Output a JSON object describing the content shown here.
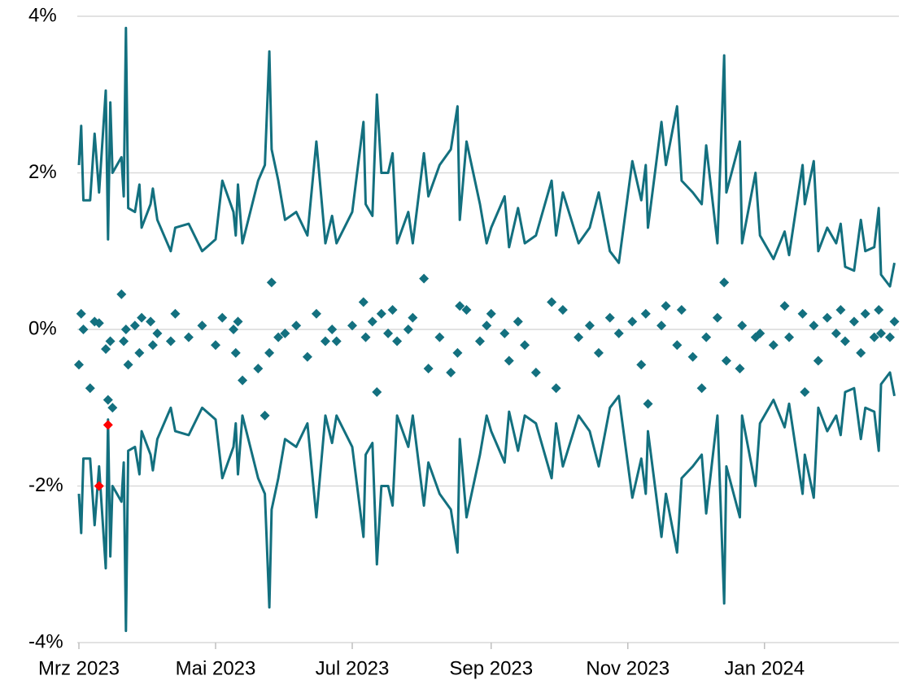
{
  "chart_data": {
    "type": "line",
    "x": [
      "2023-03-01",
      "2023-03-02",
      "2023-03-03",
      "2023-03-06",
      "2023-03-08",
      "2023-03-10",
      "2023-03-13",
      "2023-03-14",
      "2023-03-15",
      "2023-03-16",
      "2023-03-20",
      "2023-03-21",
      "2023-03-22",
      "2023-03-23",
      "2023-03-26",
      "2023-03-28",
      "2023-03-29",
      "2023-04-02",
      "2023-04-03",
      "2023-04-05",
      "2023-04-11",
      "2023-04-13",
      "2023-04-19",
      "2023-04-25",
      "2023-05-01",
      "2023-05-04",
      "2023-05-09",
      "2023-05-10",
      "2023-05-11",
      "2023-05-13",
      "2023-05-20",
      "2023-05-23",
      "2023-05-25",
      "2023-05-26",
      "2023-05-29",
      "2023-06-01",
      "2023-06-06",
      "2023-06-11",
      "2023-06-15",
      "2023-06-19",
      "2023-06-22",
      "2023-06-24",
      "2023-07-01",
      "2023-07-06",
      "2023-07-07",
      "2023-07-10",
      "2023-07-12",
      "2023-07-14",
      "2023-07-17",
      "2023-07-19",
      "2023-07-21",
      "2023-07-26",
      "2023-07-28",
      "2023-08-02",
      "2023-08-04",
      "2023-08-09",
      "2023-08-14",
      "2023-08-17",
      "2023-08-18",
      "2023-08-21",
      "2023-08-27",
      "2023-08-30",
      "2023-09-01",
      "2023-09-07",
      "2023-09-09",
      "2023-09-13",
      "2023-09-16",
      "2023-09-21",
      "2023-09-28",
      "2023-09-30",
      "2023-10-03",
      "2023-10-10",
      "2023-10-15",
      "2023-10-19",
      "2023-10-24",
      "2023-10-28",
      "2023-11-03",
      "2023-11-07",
      "2023-11-09",
      "2023-11-10",
      "2023-11-16",
      "2023-11-18",
      "2023-11-23",
      "2023-11-25",
      "2023-11-30",
      "2023-12-04",
      "2023-12-06",
      "2023-12-11",
      "2023-12-14",
      "2023-12-15",
      "2023-12-21",
      "2023-12-22",
      "2023-12-28",
      "2023-12-30",
      "2024-01-05",
      "2024-01-10",
      "2024-01-12",
      "2024-01-18",
      "2024-01-19",
      "2024-01-23",
      "2024-01-25",
      "2024-01-29",
      "2024-02-02",
      "2024-02-04",
      "2024-02-06",
      "2024-02-10",
      "2024-02-13",
      "2024-02-15",
      "2024-02-19",
      "2024-02-21",
      "2024-02-22",
      "2024-02-26",
      "2024-02-28"
    ],
    "series": [
      {
        "type": "line",
        "color": "#13707f",
        "values": [
          2.1,
          2.6,
          1.65,
          1.65,
          2.5,
          1.75,
          3.05,
          1.15,
          2.9,
          2.0,
          2.2,
          1.7,
          3.85,
          1.55,
          1.5,
          1.85,
          1.3,
          1.6,
          1.8,
          1.4,
          1.0,
          1.3,
          1.35,
          1.0,
          1.15,
          1.9,
          1.5,
          1.2,
          1.85,
          1.1,
          1.9,
          2.1,
          3.55,
          2.3,
          1.9,
          1.4,
          1.5,
          1.2,
          2.4,
          1.1,
          1.45,
          1.1,
          1.5,
          2.65,
          1.6,
          1.45,
          3.0,
          2.0,
          2.0,
          2.25,
          1.1,
          1.5,
          1.1,
          2.25,
          1.7,
          2.1,
          2.3,
          2.85,
          1.4,
          2.4,
          1.6,
          1.1,
          1.3,
          1.7,
          1.05,
          1.55,
          1.1,
          1.2,
          1.9,
          1.2,
          1.75,
          1.1,
          1.3,
          1.75,
          1.0,
          0.85,
          2.15,
          1.65,
          2.1,
          1.3,
          2.65,
          2.1,
          2.85,
          1.9,
          1.75,
          1.6,
          2.35,
          1.1,
          3.5,
          1.75,
          2.4,
          1.1,
          2.0,
          1.2,
          0.9,
          1.25,
          0.95,
          2.1,
          1.6,
          2.15,
          1.0,
          1.3,
          1.1,
          1.35,
          0.8,
          0.75,
          1.4,
          1.0,
          1.05,
          1.55,
          0.7,
          0.55,
          0.85
        ]
      },
      {
        "type": "line",
        "color": "#13707f",
        "values": [
          -2.1,
          -2.6,
          -1.65,
          -1.65,
          -2.5,
          -1.75,
          -3.05,
          -1.15,
          -2.9,
          -2.0,
          -2.2,
          -1.7,
          -3.85,
          -1.55,
          -1.5,
          -1.85,
          -1.3,
          -1.6,
          -1.8,
          -1.4,
          -1.0,
          -1.3,
          -1.35,
          -1.0,
          -1.15,
          -1.9,
          -1.5,
          -1.2,
          -1.85,
          -1.1,
          -1.9,
          -2.1,
          -3.55,
          -2.3,
          -1.9,
          -1.4,
          -1.5,
          -1.2,
          -2.4,
          -1.1,
          -1.45,
          -1.1,
          -1.5,
          -2.65,
          -1.6,
          -1.45,
          -3.0,
          -2.0,
          -2.0,
          -2.25,
          -1.1,
          -1.5,
          -1.1,
          -2.25,
          -1.7,
          -2.1,
          -2.3,
          -2.85,
          -1.4,
          -2.4,
          -1.6,
          -1.1,
          -1.3,
          -1.7,
          -1.05,
          -1.55,
          -1.1,
          -1.2,
          -1.9,
          -1.2,
          -1.75,
          -1.1,
          -1.3,
          -1.75,
          -1.0,
          -0.85,
          -2.15,
          -1.65,
          -2.1,
          -1.3,
          -2.65,
          -2.1,
          -2.85,
          -1.9,
          -1.75,
          -1.6,
          -2.35,
          -1.1,
          -3.5,
          -1.75,
          -2.4,
          -1.1,
          -2.0,
          -1.2,
          -0.9,
          -1.25,
          -0.95,
          -2.1,
          -1.6,
          -2.15,
          -1.0,
          -1.3,
          -1.1,
          -1.35,
          -0.8,
          -0.75,
          -1.4,
          -1.0,
          -1.05,
          -1.55,
          -0.7,
          -0.55,
          -0.85
        ]
      },
      {
        "type": "scatter",
        "color": "#13707f",
        "values": [
          -0.45,
          0.2,
          0,
          -0.75,
          0.1,
          0.08,
          -0.25,
          -0.9,
          -0.15,
          -1.0,
          0.45,
          -0.15,
          0,
          -0.45,
          0.05,
          -0.3,
          0.15,
          0.1,
          -0.2,
          -0.05,
          -0.15,
          0.2,
          -0.1,
          0.05,
          -0.2,
          0.15,
          0,
          -0.3,
          0.1,
          -0.65,
          -0.5,
          -1.1,
          -0.3,
          0.6,
          -0.1,
          -0.05,
          0.05,
          -0.35,
          0.2,
          -0.15,
          0,
          -0.15,
          0.05,
          0.35,
          -0.1,
          0.1,
          -0.8,
          0.2,
          -0.05,
          0.25,
          -0.15,
          0,
          0.15,
          0.65,
          -0.5,
          -0.1,
          -0.55,
          -0.3,
          0.3,
          0.25,
          -0.15,
          0.05,
          0.2,
          -0.05,
          -0.4,
          0.1,
          -0.2,
          -0.55,
          0.35,
          -0.75,
          0.25,
          -0.1,
          0.05,
          -0.3,
          0.15,
          -0.05,
          0.1,
          -0.45,
          0.2,
          -0.95,
          0.05,
          0.3,
          -0.2,
          0.25,
          -0.35,
          -0.75,
          -0.1,
          0.15,
          0.6,
          -0.4,
          -0.5,
          0.05,
          -0.1,
          -0.05,
          -0.2,
          0.3,
          -0.1,
          0.2,
          -0.8,
          0.05,
          -0.4,
          0.15,
          -0.05,
          0.25,
          -0.15,
          0.1,
          -0.3,
          0.2,
          -0.1,
          0.25,
          -0.05,
          -0.1,
          0.1
        ]
      },
      {
        "type": "scatter",
        "color": "#ff0000",
        "x": [
          "2023-03-10",
          "2023-03-14"
        ],
        "values": [
          -2.0,
          -1.22
        ]
      }
    ],
    "xlim": [
      "2023-03-01",
      "2024-03-01"
    ],
    "xticks": [
      {
        "value": "2023-03-01",
        "label": "Mrz 2023"
      },
      {
        "value": "2023-05-01",
        "label": "Mai 2023"
      },
      {
        "value": "2023-07-01",
        "label": "Jul 2023"
      },
      {
        "value": "2023-09-01",
        "label": "Sep 2023"
      },
      {
        "value": "2023-11-01",
        "label": "Nov 2023"
      },
      {
        "value": "2024-01-01",
        "label": "Jan 2024"
      }
    ],
    "ylim": [
      -4,
      4
    ],
    "yticks": [
      {
        "value": 4,
        "label": "4%"
      },
      {
        "value": 2,
        "label": "2%"
      },
      {
        "value": 0,
        "label": "0%"
      },
      {
        "value": -2,
        "label": "-2%"
      },
      {
        "value": -4,
        "label": "-4%"
      }
    ],
    "grid": true
  }
}
